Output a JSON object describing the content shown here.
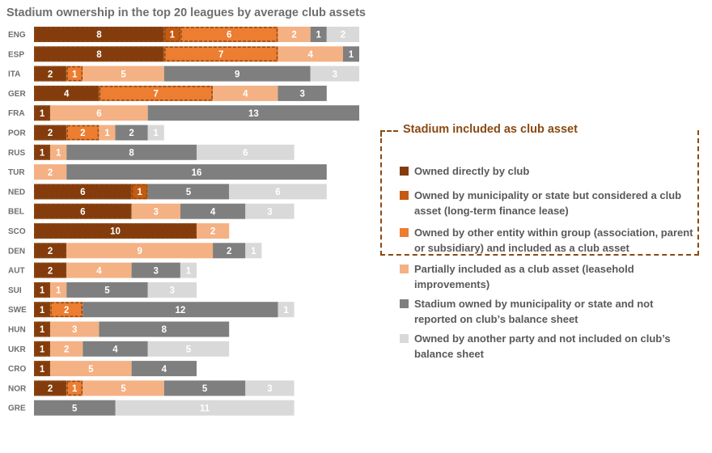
{
  "chart_data": {
    "type": "bar",
    "orientation": "horizontal",
    "stacked": true,
    "title": "Stadium ownership in the top 20 leagues by average club assets",
    "categories": [
      "ENG",
      "ESP",
      "ITA",
      "GER",
      "FRA",
      "POR",
      "RUS",
      "TUR",
      "NED",
      "BEL",
      "SCO",
      "DEN",
      "AUT",
      "SUI",
      "SWE",
      "HUN",
      "UKR",
      "CRO",
      "NOR",
      "GRE"
    ],
    "series": [
      {
        "name": "Owned directly by club",
        "color": "#843C0C",
        "values": [
          8,
          8,
          2,
          4,
          1,
          2,
          1,
          0,
          6,
          6,
          10,
          2,
          2,
          1,
          1,
          1,
          1,
          1,
          2,
          0
        ]
      },
      {
        "name": "Owned by municipality or state but considered a club asset (long-term finance lease)",
        "color": "#C55A11",
        "values": [
          1,
          0,
          0,
          0,
          0,
          0,
          0,
          0,
          1,
          0,
          0,
          0,
          0,
          0,
          0,
          0,
          0,
          0,
          0,
          0
        ]
      },
      {
        "name": "Owned by other entity within group (association, parent or subsidiary) and included as a club asset",
        "color": "#ED7D31",
        "values": [
          6,
          7,
          1,
          7,
          0,
          2,
          0,
          0,
          0,
          0,
          0,
          0,
          0,
          0,
          2,
          0,
          0,
          0,
          1,
          0
        ]
      },
      {
        "name": "Partially included as a club asset (leasehold improvements)",
        "color": "#F4B183",
        "values": [
          2,
          4,
          5,
          4,
          6,
          1,
          1,
          2,
          0,
          3,
          2,
          9,
          4,
          1,
          0,
          3,
          2,
          5,
          5,
          0
        ]
      },
      {
        "name": "Stadium owned by municipality or state and not reported on club's balance sheet",
        "color": "#7F7F7F",
        "values": [
          1,
          1,
          9,
          3,
          13,
          2,
          8,
          16,
          5,
          4,
          0,
          2,
          3,
          5,
          12,
          8,
          4,
          4,
          5,
          5
        ]
      },
      {
        "name": "Owned by another party and not included on club's balance sheet",
        "color": "#D9D9D9",
        "values": [
          2,
          0,
          3,
          0,
          0,
          1,
          6,
          0,
          6,
          3,
          0,
          1,
          1,
          3,
          1,
          0,
          5,
          0,
          3,
          11
        ]
      }
    ],
    "legend_title": "Stadium included as club asset",
    "legend": [
      "Owned directly by club",
      "Owned by municipality or state but considered a club asset (long-term finance lease)",
      "Owned by other entity within group (association, parent or subsidiary) and included as a club asset",
      "Partially included as a club asset (leasehold improvements)",
      "Stadium owned by municipality or state and not reported on club’s balance sheet",
      "Owned by another party and not included on club’s balance sheet"
    ],
    "grid": false,
    "legend_position": "right"
  }
}
